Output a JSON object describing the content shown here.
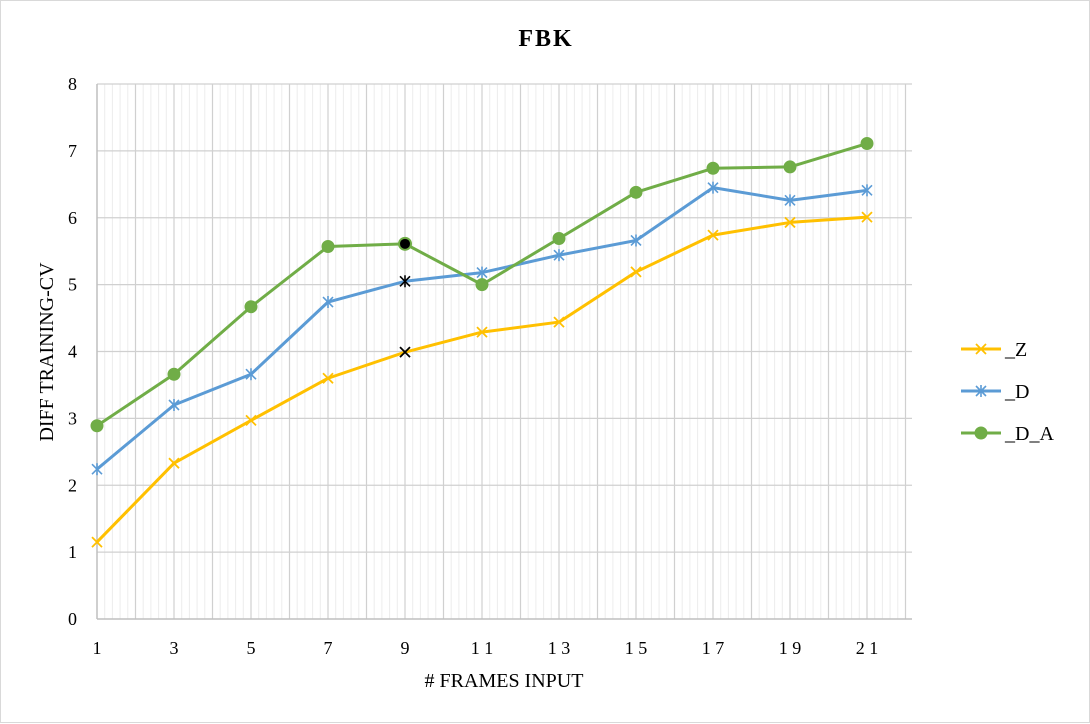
{
  "chart_data": {
    "type": "line",
    "title": "FBK",
    "xlabel": "# FRAMES INPUT",
    "ylabel": "DIFF TRAINING-CV",
    "x": [
      1,
      3,
      5,
      7,
      9,
      11,
      13,
      15,
      17,
      19,
      21
    ],
    "x_tick_labels": [
      "1",
      "3",
      "5",
      "7",
      "9",
      "1 1",
      "1 3",
      "1 5",
      "1 7",
      "1 9",
      "2 1"
    ],
    "y_ticks": [
      0,
      1,
      2,
      3,
      4,
      5,
      6,
      7,
      8
    ],
    "xlim": [
      1,
      22
    ],
    "ylim": [
      0,
      8
    ],
    "grid": true,
    "legend_position": "right",
    "series": [
      {
        "name": "_Z",
        "marker": "x",
        "color": "#FFC000",
        "values": [
          1.15,
          2.33,
          2.97,
          3.6,
          3.99,
          4.29,
          4.44,
          5.19,
          5.74,
          5.93,
          6.01
        ]
      },
      {
        "name": "_D",
        "marker": "asterisk",
        "color": "#5B9BD5",
        "values": [
          2.24,
          3.2,
          3.66,
          4.74,
          5.05,
          5.18,
          5.44,
          5.66,
          6.45,
          6.26,
          6.41
        ]
      },
      {
        "name": "_D_A",
        "marker": "circle",
        "color": "#70AD47",
        "values": [
          2.89,
          3.66,
          4.67,
          5.57,
          5.61,
          5.0,
          5.69,
          6.38,
          6.74,
          6.76,
          7.11
        ]
      }
    ],
    "highlighted_points": [
      {
        "series": "_Z",
        "x": 9,
        "color": "#000000"
      },
      {
        "series": "_D",
        "x": 9,
        "color": "#000000"
      },
      {
        "series": "_D_A",
        "x": 9,
        "color": "#000000"
      }
    ]
  }
}
